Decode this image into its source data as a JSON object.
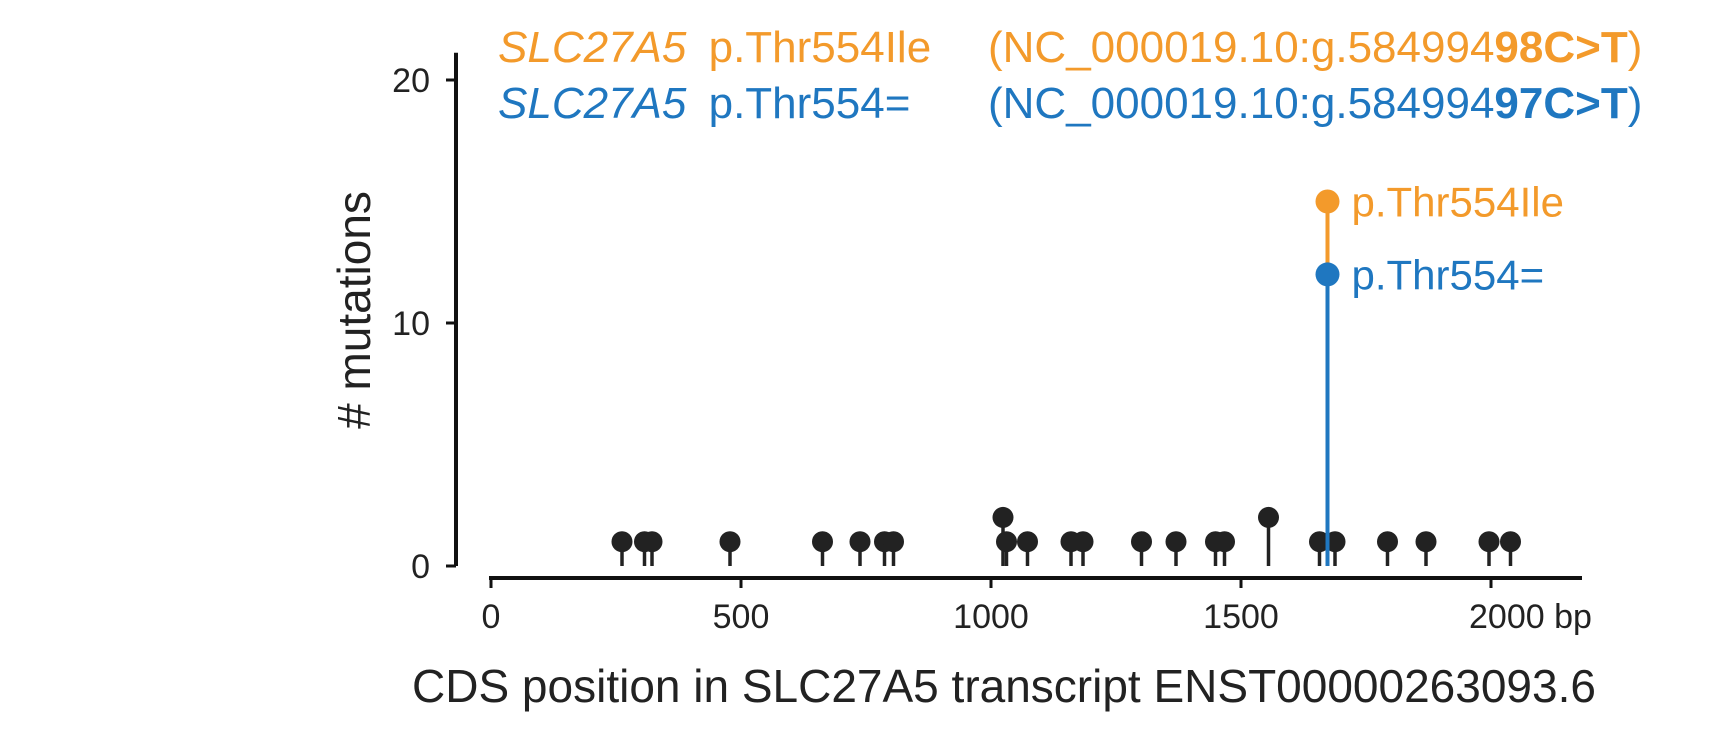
{
  "chart_data": {
    "type": "lollipop",
    "xlabel": "CDS position in SLC27A5 transcript ENST00000263093.6",
    "ylabel": "# mutations",
    "xlim": [
      0,
      2180
    ],
    "ylim": [
      0,
      21
    ],
    "x_ticks": [
      {
        "value": 0,
        "label": "0"
      },
      {
        "value": 500,
        "label": "500"
      },
      {
        "value": 1000,
        "label": "1000"
      },
      {
        "value": 1500,
        "label": "1500"
      },
      {
        "value": 2000,
        "label": "2000 bp"
      }
    ],
    "y_ticks": [
      {
        "value": 0,
        "label": "0"
      },
      {
        "value": 10,
        "label": "10"
      },
      {
        "value": 20,
        "label": "20"
      }
    ],
    "colors": {
      "default": "#222222",
      "orange": "#f39a2b",
      "blue": "#1f77c0"
    },
    "points": [
      {
        "x": 262,
        "y": 1
      },
      {
        "x": 307,
        "y": 1
      },
      {
        "x": 322,
        "y": 1
      },
      {
        "x": 478,
        "y": 1
      },
      {
        "x": 663,
        "y": 1
      },
      {
        "x": 738,
        "y": 1
      },
      {
        "x": 787,
        "y": 1
      },
      {
        "x": 805,
        "y": 1
      },
      {
        "x": 1024,
        "y": 2
      },
      {
        "x": 1031,
        "y": 1
      },
      {
        "x": 1073,
        "y": 1
      },
      {
        "x": 1160,
        "y": 1
      },
      {
        "x": 1184,
        "y": 1
      },
      {
        "x": 1301,
        "y": 1
      },
      {
        "x": 1370,
        "y": 1
      },
      {
        "x": 1449,
        "y": 1
      },
      {
        "x": 1467,
        "y": 1
      },
      {
        "x": 1555,
        "y": 2
      },
      {
        "x": 1657,
        "y": 1
      },
      {
        "x": 1688,
        "y": 1
      },
      {
        "x": 1793,
        "y": 1
      },
      {
        "x": 1870,
        "y": 1
      },
      {
        "x": 1996,
        "y": 1
      },
      {
        "x": 2039,
        "y": 1
      }
    ],
    "highlighted": [
      {
        "x": 1673,
        "y": 15,
        "label": "p.Thr554Ile",
        "color": "#f39a2b"
      },
      {
        "x": 1673,
        "y": 12,
        "label": "p.Thr554=",
        "color": "#1f77c0"
      }
    ],
    "legend": [
      {
        "gene": "SLC27A5",
        "protein": "p.Thr554Ile",
        "hgvs_prefix": "(NC_000019.10:g.584994",
        "hgvs_bold": "98C>T",
        "hgvs_suffix": ")",
        "color": "#f39a2b"
      },
      {
        "gene": "SLC27A5",
        "protein": "p.Thr554=",
        "hgvs_prefix": "(NC_000019.10:g.584994",
        "hgvs_bold": "97C>T",
        "hgvs_suffix": ")",
        "color": "#1f77c0"
      }
    ]
  }
}
